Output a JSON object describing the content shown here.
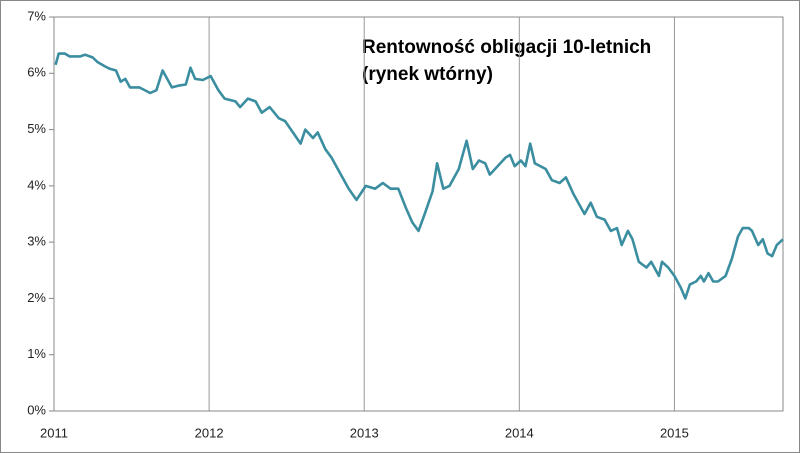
{
  "chart_data": {
    "type": "line",
    "title": "Rentowność obligacji 10-letnich",
    "subtitle": "(rynek wtórny)",
    "x": [
      2011.01,
      2011.03,
      2011.07,
      2011.1,
      2011.17,
      2011.2,
      2011.25,
      2011.28,
      2011.33,
      2011.36,
      2011.4,
      2011.43,
      2011.46,
      2011.49,
      2011.55,
      2011.62,
      2011.66,
      2011.7,
      2011.76,
      2011.8,
      2011.85,
      2011.88,
      2011.91,
      2011.96,
      2012.01,
      2012.06,
      2012.1,
      2012.17,
      2012.2,
      2012.25,
      2012.3,
      2012.34,
      2012.39,
      2012.45,
      2012.49,
      2012.54,
      2012.59,
      2012.62,
      2012.67,
      2012.7,
      2012.75,
      2012.79,
      2012.85,
      2012.9,
      2012.95,
      2013.01,
      2013.07,
      2013.12,
      2013.17,
      2013.22,
      2013.27,
      2013.31,
      2013.35,
      2013.39,
      2013.44,
      2013.47,
      2013.51,
      2013.55,
      2013.61,
      2013.63,
      2013.66,
      2013.7,
      2013.74,
      2013.78,
      2013.81,
      2013.86,
      2013.91,
      2013.94,
      2013.97,
      2014.01,
      2014.04,
      2014.07,
      2014.1,
      2014.17,
      2014.21,
      2014.26,
      2014.3,
      2014.35,
      2014.38,
      2014.42,
      2014.46,
      2014.5,
      2014.55,
      2014.59,
      2014.63,
      2014.66,
      2014.7,
      2014.73,
      2014.77,
      2014.82,
      2014.85,
      2014.88,
      2014.9,
      2014.92,
      2014.96,
      2015.0,
      2015.04,
      2015.07,
      2015.1,
      2015.14,
      2015.17,
      2015.19,
      2015.22,
      2015.25,
      2015.28,
      2015.33,
      2015.37,
      2015.41,
      2015.44,
      2015.48,
      2015.5,
      2015.54,
      2015.57,
      2015.6,
      2015.63,
      2015.66,
      2015.7
    ],
    "series": [
      {
        "color": "#3b8ea0",
        "values": [
          6.15,
          6.35,
          6.35,
          6.3,
          6.3,
          6.33,
          6.28,
          6.2,
          6.12,
          6.08,
          6.05,
          5.85,
          5.9,
          5.75,
          5.75,
          5.65,
          5.7,
          6.05,
          5.75,
          5.78,
          5.8,
          6.1,
          5.9,
          5.88,
          5.95,
          5.7,
          5.55,
          5.5,
          5.4,
          5.55,
          5.5,
          5.3,
          5.4,
          5.2,
          5.15,
          4.95,
          4.75,
          5.0,
          4.85,
          4.95,
          4.65,
          4.5,
          4.2,
          3.95,
          3.75,
          4.0,
          3.95,
          4.05,
          3.95,
          3.95,
          3.6,
          3.35,
          3.2,
          3.5,
          3.9,
          4.4,
          3.95,
          4.0,
          4.3,
          4.5,
          4.8,
          4.3,
          4.45,
          4.4,
          4.2,
          4.35,
          4.5,
          4.55,
          4.35,
          4.45,
          4.35,
          4.75,
          4.4,
          4.3,
          4.1,
          4.05,
          4.15,
          3.85,
          3.7,
          3.5,
          3.7,
          3.45,
          3.4,
          3.2,
          3.25,
          2.95,
          3.2,
          3.05,
          2.65,
          2.55,
          2.65,
          2.5,
          2.4,
          2.65,
          2.55,
          2.4,
          2.2,
          2.0,
          2.25,
          2.3,
          2.4,
          2.3,
          2.45,
          2.3,
          2.3,
          2.4,
          2.7,
          3.1,
          3.25,
          3.25,
          3.2,
          2.95,
          3.05,
          2.8,
          2.75,
          2.95,
          3.05
        ]
      }
    ],
    "xlim": [
      2011,
      2015.7
    ],
    "xticks": [
      2011,
      2012,
      2013,
      2014,
      2015
    ],
    "ylim": [
      0,
      7
    ],
    "yticks": [
      {
        "value": 0,
        "label": "0%"
      },
      {
        "value": 1,
        "label": "1%"
      },
      {
        "value": 2,
        "label": "2%"
      },
      {
        "value": 3,
        "label": "3%"
      },
      {
        "value": 4,
        "label": "4%"
      },
      {
        "value": 5,
        "label": "5%"
      },
      {
        "value": 6,
        "label": "6%"
      },
      {
        "value": 7,
        "label": "7%"
      }
    ],
    "grid": "x"
  }
}
